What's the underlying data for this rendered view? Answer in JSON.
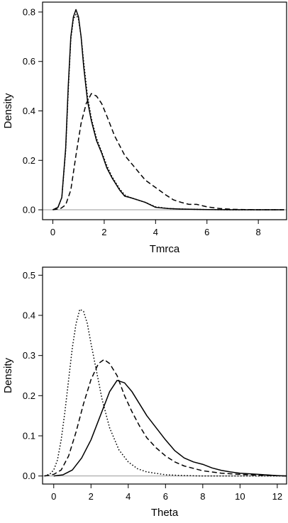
{
  "chart_data": [
    {
      "type": "line",
      "title": "",
      "xlabel": "Tmrca",
      "ylabel": "Density",
      "xlim": [
        -0.4,
        9.1
      ],
      "ylim": [
        -0.04,
        0.84
      ],
      "xticks": [
        0,
        2,
        4,
        6,
        8
      ],
      "yticks": [
        0.0,
        0.2,
        0.4,
        0.6,
        0.8
      ],
      "xtick_labels": [
        "0",
        "2",
        "4",
        "6",
        "8"
      ],
      "ytick_labels": [
        "0.0",
        "0.2",
        "0.4",
        "0.6",
        "0.8"
      ],
      "reference_line_y": 0,
      "grid": false,
      "legend": "none",
      "series": [
        {
          "style": "solid",
          "x": [
            0.0,
            0.2,
            0.35,
            0.5,
            0.6,
            0.7,
            0.8,
            0.9,
            1.0,
            1.1,
            1.2,
            1.35,
            1.5,
            1.7,
            1.9,
            2.1,
            2.3,
            2.6,
            2.8,
            3.0,
            3.3,
            3.6,
            4.0,
            4.5,
            5.0,
            6.0,
            7.0,
            8.0,
            9.0
          ],
          "y": [
            0.0,
            0.01,
            0.05,
            0.25,
            0.5,
            0.7,
            0.78,
            0.81,
            0.78,
            0.7,
            0.58,
            0.44,
            0.36,
            0.28,
            0.23,
            0.17,
            0.13,
            0.08,
            0.055,
            0.05,
            0.04,
            0.03,
            0.01,
            0.005,
            0.003,
            0.001,
            0.0,
            0.0,
            0.0
          ]
        },
        {
          "style": "dotted",
          "x": [
            0.0,
            0.2,
            0.35,
            0.5,
            0.6,
            0.7,
            0.8,
            0.9,
            1.0,
            1.1,
            1.2,
            1.35,
            1.5,
            1.7,
            1.9,
            2.1,
            2.3,
            2.6,
            2.8,
            3.0,
            3.3,
            3.6,
            4.0,
            4.5,
            5.0,
            6.0,
            7.0,
            8.0,
            9.0
          ],
          "y": [
            0.0,
            0.01,
            0.05,
            0.24,
            0.48,
            0.69,
            0.77,
            0.79,
            0.77,
            0.7,
            0.6,
            0.46,
            0.37,
            0.29,
            0.235,
            0.18,
            0.135,
            0.085,
            0.06,
            0.05,
            0.04,
            0.03,
            0.012,
            0.005,
            0.003,
            0.001,
            0.0,
            0.0,
            0.0
          ]
        },
        {
          "style": "dashed",
          "x": [
            0.0,
            0.3,
            0.5,
            0.7,
            0.9,
            1.1,
            1.3,
            1.5,
            1.7,
            1.9,
            2.1,
            2.4,
            2.8,
            3.2,
            3.6,
            4.0,
            4.4,
            4.7,
            5.0,
            5.3,
            5.6,
            6.0,
            6.5,
            7.0,
            8.0,
            9.0
          ],
          "y": [
            0.0,
            0.005,
            0.02,
            0.08,
            0.22,
            0.35,
            0.43,
            0.47,
            0.46,
            0.43,
            0.38,
            0.3,
            0.22,
            0.17,
            0.12,
            0.09,
            0.06,
            0.04,
            0.03,
            0.022,
            0.022,
            0.012,
            0.005,
            0.002,
            0.0,
            0.0
          ]
        }
      ]
    },
    {
      "type": "line",
      "title": "",
      "xlabel": "Theta",
      "ylabel": "Density",
      "xlim": [
        -0.6,
        12.5
      ],
      "ylim": [
        -0.02,
        0.52
      ],
      "xticks": [
        0,
        2,
        4,
        6,
        8,
        10,
        12
      ],
      "yticks": [
        0.0,
        0.1,
        0.2,
        0.3,
        0.4,
        0.5
      ],
      "xtick_labels": [
        "0",
        "2",
        "4",
        "6",
        "8",
        "10",
        "12"
      ],
      "ytick_labels": [
        "0.0",
        "0.1",
        "0.2",
        "0.3",
        "0.4",
        "0.5"
      ],
      "reference_line_y": 0,
      "grid": false,
      "legend": "none",
      "series": [
        {
          "style": "dotted",
          "x": [
            -0.5,
            -0.2,
            0.0,
            0.2,
            0.4,
            0.6,
            0.8,
            1.0,
            1.2,
            1.4,
            1.6,
            1.8,
            2.0,
            2.3,
            2.6,
            3.0,
            3.5,
            4.0,
            4.5,
            5.0,
            6.0,
            7.0,
            8.0,
            10.0,
            12.5
          ],
          "y": [
            0.0,
            0.005,
            0.015,
            0.04,
            0.09,
            0.16,
            0.24,
            0.32,
            0.38,
            0.415,
            0.41,
            0.38,
            0.33,
            0.26,
            0.19,
            0.12,
            0.065,
            0.035,
            0.018,
            0.01,
            0.003,
            0.001,
            0.0,
            0.0,
            0.0
          ]
        },
        {
          "style": "dashed",
          "x": [
            -0.5,
            0.0,
            0.4,
            0.8,
            1.2,
            1.6,
            2.0,
            2.4,
            2.7,
            3.0,
            3.4,
            3.8,
            4.2,
            4.6,
            5.0,
            5.5,
            6.0,
            6.5,
            7.0,
            8.0,
            9.0,
            10.0,
            11.0,
            12.5
          ],
          "y": [
            0.0,
            0.004,
            0.015,
            0.05,
            0.11,
            0.18,
            0.24,
            0.28,
            0.29,
            0.28,
            0.25,
            0.2,
            0.16,
            0.125,
            0.095,
            0.07,
            0.05,
            0.035,
            0.025,
            0.013,
            0.007,
            0.004,
            0.002,
            0.0
          ]
        },
        {
          "style": "solid",
          "x": [
            0.0,
            0.5,
            1.0,
            1.5,
            2.0,
            2.5,
            3.0,
            3.4,
            3.8,
            4.2,
            4.6,
            5.0,
            5.5,
            6.0,
            6.5,
            7.0,
            7.5,
            8.0,
            8.5,
            9.0,
            9.5,
            10.0,
            11.0,
            12.0,
            12.5
          ],
          "y": [
            0.0,
            0.003,
            0.015,
            0.045,
            0.09,
            0.15,
            0.21,
            0.238,
            0.232,
            0.21,
            0.18,
            0.15,
            0.12,
            0.09,
            0.063,
            0.045,
            0.035,
            0.029,
            0.02,
            0.014,
            0.01,
            0.007,
            0.004,
            0.001,
            0.0
          ]
        }
      ]
    }
  ]
}
